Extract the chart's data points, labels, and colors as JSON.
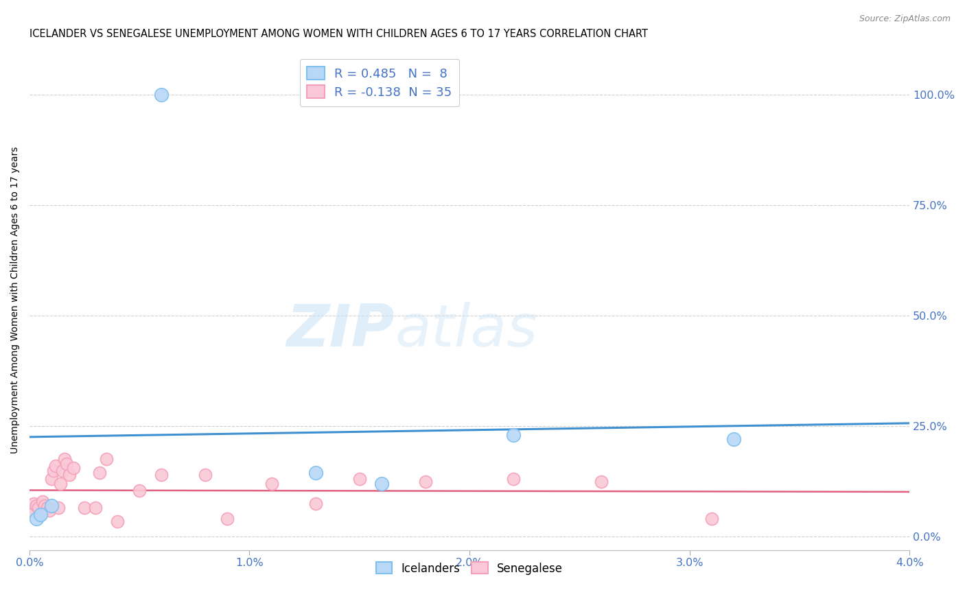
{
  "title": "ICELANDER VS SENEGALESE UNEMPLOYMENT AMONG WOMEN WITH CHILDREN AGES 6 TO 17 YEARS CORRELATION CHART",
  "source": "Source: ZipAtlas.com",
  "ylabel": "Unemployment Among Women with Children Ages 6 to 17 years",
  "xlim": [
    0.0,
    0.04
  ],
  "ylim": [
    -0.03,
    1.1
  ],
  "xticks": [
    0.0,
    0.01,
    0.02,
    0.03,
    0.04
  ],
  "xtick_labels": [
    "0.0%",
    "1.0%",
    "2.0%",
    "3.0%",
    "4.0%"
  ],
  "yticks": [
    0.0,
    0.25,
    0.5,
    0.75,
    1.0
  ],
  "ytick_labels": [
    "0.0%",
    "25.0%",
    "50.0%",
    "75.0%",
    "100.0%"
  ],
  "watermark_zip": "ZIP",
  "watermark_atlas": "atlas",
  "icelanders": {
    "R": 0.485,
    "N": 8,
    "color": "#7fbfed",
    "color_fill": "#b8d8f8",
    "line_color": "#4090d0",
    "x": [
      0.0003,
      0.0005,
      0.001,
      0.006,
      0.013,
      0.016,
      0.022,
      0.032
    ],
    "y": [
      0.04,
      0.05,
      0.07,
      1.0,
      0.145,
      0.12,
      0.23,
      0.22
    ]
  },
  "senegalese": {
    "R": -0.138,
    "N": 35,
    "color": "#f4a0b8",
    "color_fill": "#fac8d8",
    "line_color": "#e06080",
    "x": [
      0.0001,
      0.0002,
      0.0003,
      0.0004,
      0.0005,
      0.0006,
      0.0007,
      0.0008,
      0.0009,
      0.001,
      0.0011,
      0.0012,
      0.0013,
      0.0014,
      0.0015,
      0.0016,
      0.0017,
      0.0018,
      0.002,
      0.0025,
      0.003,
      0.0032,
      0.0035,
      0.004,
      0.005,
      0.006,
      0.008,
      0.009,
      0.011,
      0.013,
      0.015,
      0.018,
      0.022,
      0.026,
      0.031
    ],
    "y": [
      0.06,
      0.075,
      0.07,
      0.065,
      0.05,
      0.08,
      0.07,
      0.065,
      0.06,
      0.13,
      0.15,
      0.16,
      0.065,
      0.12,
      0.15,
      0.175,
      0.165,
      0.14,
      0.155,
      0.065,
      0.065,
      0.145,
      0.175,
      0.035,
      0.105,
      0.14,
      0.14,
      0.04,
      0.12,
      0.075,
      0.13,
      0.125,
      0.13,
      0.125,
      0.04
    ]
  },
  "legend_icelanders": "Icelanders",
  "legend_senegalese": "Senegalese",
  "background_color": "#ffffff",
  "grid_color": "#d0d0d0",
  "axis_color": "#4472c4",
  "pink_line_solid": true
}
